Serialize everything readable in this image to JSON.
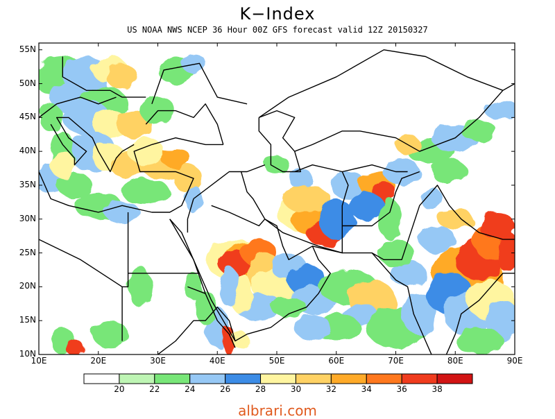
{
  "title": "K−Index",
  "subtitle": "US NOAA NWS NCEP 36 Hour 00Z GFS forecast valid 12Z 20150327",
  "chart_data": {
    "type": "heatmap",
    "x_ticks": [
      "10E",
      "20E",
      "30E",
      "40E",
      "50E",
      "60E",
      "70E",
      "80E",
      "90E"
    ],
    "y_ticks": [
      "55N",
      "50N",
      "45N",
      "40N",
      "35N",
      "30N",
      "25N",
      "20N",
      "15N",
      "10N"
    ],
    "xlim_deg_e": [
      10,
      90
    ],
    "ylim_deg_n": [
      10,
      56
    ],
    "colorbar": {
      "levels": [
        "20",
        "22",
        "24",
        "26",
        "28",
        "30",
        "32",
        "34",
        "36",
        "38"
      ],
      "colors": [
        "#ffffff",
        "#bef5b4",
        "#78e678",
        "#96c8f5",
        "#3c8ce6",
        "#fff5a0",
        "#ffd264",
        "#ffaa28",
        "#ff781e",
        "#f03c1e",
        "#d21414"
      ]
    }
  },
  "watermark": "albrari.com"
}
